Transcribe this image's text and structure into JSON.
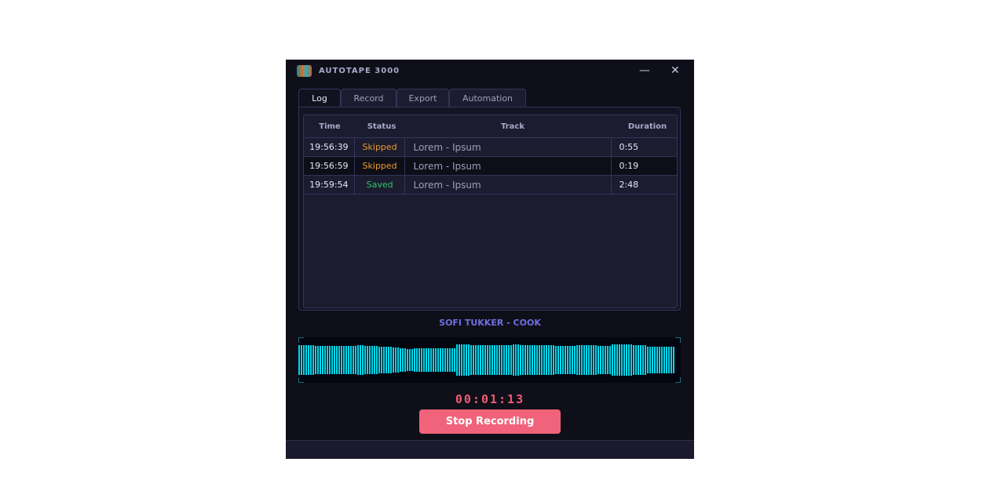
{
  "app": {
    "title": "AUTOTAPE 3000",
    "icons": {
      "minimize": "minimize-icon",
      "close": "close-icon"
    }
  },
  "tabs": [
    {
      "label": "Log",
      "active": true
    },
    {
      "label": "Record"
    },
    {
      "label": "Export"
    },
    {
      "label": "Automation"
    }
  ],
  "log": {
    "columns": [
      "Time",
      "Status",
      "Track",
      "Duration"
    ],
    "rows": [
      {
        "time": "19:56:39",
        "status": "Skipped",
        "track": "Lorem - Ipsum",
        "duration": "0:55"
      },
      {
        "time": "19:56:59",
        "status": "Skipped",
        "track": "Lorem - Ipsum",
        "duration": "0:19"
      },
      {
        "time": "19:59:54",
        "status": "Saved",
        "track": "Lorem - Ipsum",
        "duration": "2:48"
      }
    ]
  },
  "now_playing": "SOFI TUKKER - COOK",
  "timer": "00:01:13",
  "stop_label": "Stop Recording",
  "colors": {
    "skipped": "#e89a2c",
    "saved": "#2fc46a",
    "waveform": "#00d8ec",
    "accent": "#f1637a",
    "track": "#6f6fe0"
  }
}
